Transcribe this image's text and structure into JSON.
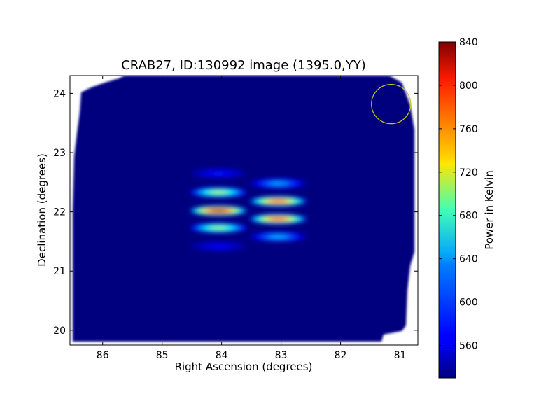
{
  "chart_data": {
    "type": "heatmap",
    "title": "CRAB27, ID:130992 image (1395.0,YY)",
    "xlabel": "Right Ascension (degrees)",
    "ylabel": "Declination (degrees)",
    "xlim": [
      86.55,
      80.7
    ],
    "ylim": [
      19.75,
      24.3
    ],
    "x_ticks": [
      86,
      85,
      84,
      83,
      82,
      81
    ],
    "y_ticks": [
      20,
      21,
      22,
      23,
      24
    ],
    "colorbar": {
      "label": "Power in Kelvin",
      "range": [
        530,
        840
      ],
      "ticks": [
        560,
        600,
        640,
        680,
        720,
        760,
        800,
        840
      ],
      "colormap": "jet"
    },
    "background_value": 530,
    "hotspots": [
      {
        "ra": 84.05,
        "dec": 22.02,
        "value": 835
      },
      {
        "ra": 84.05,
        "dec": 22.33,
        "value": 700
      },
      {
        "ra": 84.05,
        "dec": 21.73,
        "value": 695
      },
      {
        "ra": 84.05,
        "dec": 22.65,
        "value": 575
      },
      {
        "ra": 84.05,
        "dec": 21.42,
        "value": 570
      },
      {
        "ra": 83.05,
        "dec": 22.18,
        "value": 790
      },
      {
        "ra": 83.05,
        "dec": 21.88,
        "value": 795
      },
      {
        "ra": 83.05,
        "dec": 22.48,
        "value": 620
      },
      {
        "ra": 83.05,
        "dec": 21.58,
        "value": 625
      }
    ],
    "beam_circle": {
      "ra": 81.15,
      "dec": 23.82,
      "radius_deg": 0.36,
      "color": "#c8c81e"
    }
  }
}
